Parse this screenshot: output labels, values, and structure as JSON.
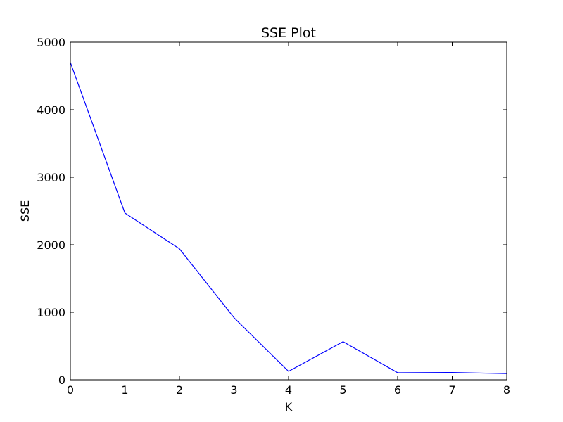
{
  "chart_data": {
    "type": "line",
    "title": "SSE Plot",
    "xlabel": "K",
    "ylabel": "SSE",
    "x": [
      0,
      1,
      2,
      3,
      4,
      5,
      6,
      7,
      8
    ],
    "series": [
      {
        "values": [
          4700,
          2470,
          1940,
          920,
          125,
          565,
          105,
          108,
          92
        ],
        "color": "#0000ff"
      }
    ],
    "xlim": [
      0,
      8
    ],
    "ylim": [
      0,
      5000
    ],
    "xticks": [
      0,
      1,
      2,
      3,
      4,
      5,
      6,
      7,
      8
    ],
    "yticks": [
      0,
      1000,
      2000,
      3000,
      4000,
      5000
    ],
    "grid": false,
    "legend": "none"
  }
}
